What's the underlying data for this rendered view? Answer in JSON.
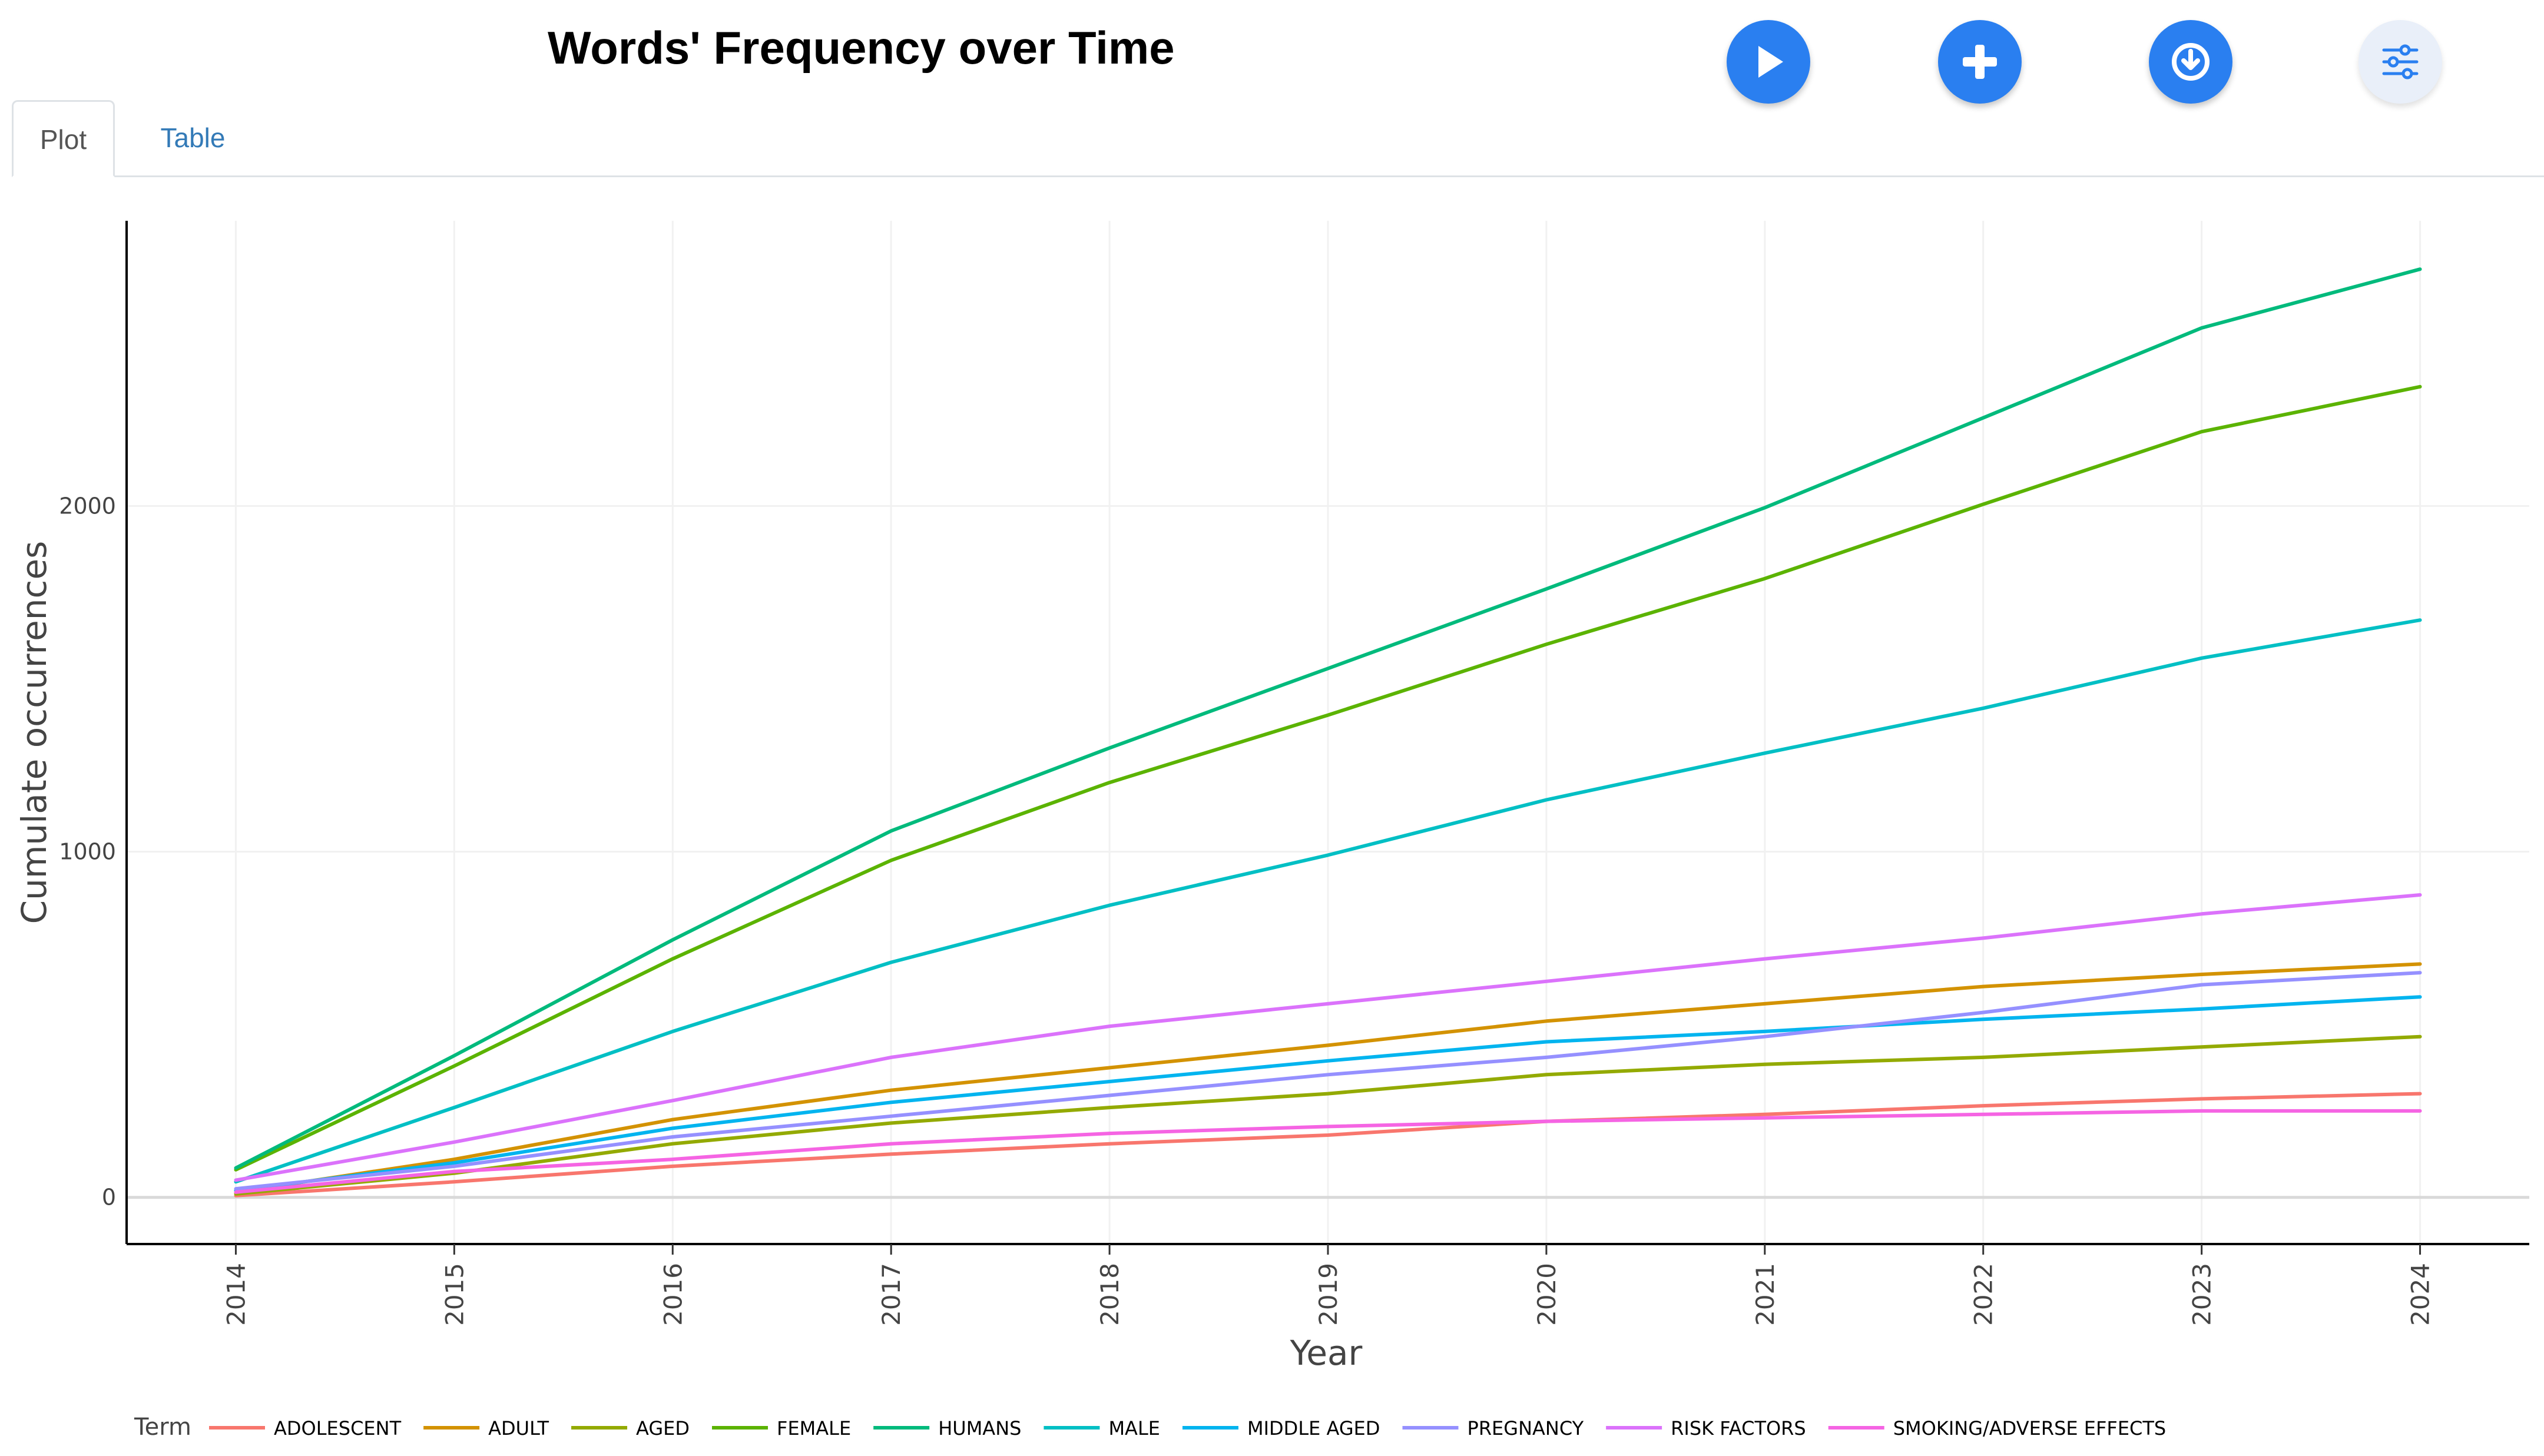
{
  "header": {
    "title": "Words' Frequency over Time"
  },
  "toolbar": {
    "play_icon": "play-icon",
    "add_icon": "plus-icon",
    "download_icon": "download-icon",
    "settings_icon": "sliders-icon",
    "accent_color": "#2a7ff0"
  },
  "tabs": [
    {
      "label": "Plot",
      "active": true
    },
    {
      "label": "Table",
      "active": false
    }
  ],
  "chart_data": {
    "type": "line",
    "title": "",
    "xlabel": "Year",
    "ylabel": "Cumulate occurrences",
    "legend_title": "Term",
    "legend_position": "bottom",
    "grid": true,
    "x": [
      2014,
      2015,
      2016,
      2017,
      2018,
      2019,
      2020,
      2021,
      2022,
      2023,
      2024
    ],
    "yticks": [
      0,
      1000,
      2000
    ],
    "xlim": [
      2013.5,
      2024.5
    ],
    "ylim": [
      -135,
      2825
    ],
    "series": [
      {
        "name": "ADOLESCENT",
        "color": "#F8766D",
        "values": [
          5,
          45,
          90,
          125,
          155,
          180,
          220,
          240,
          265,
          285,
          300
        ]
      },
      {
        "name": "ADULT",
        "color": "#D39200",
        "values": [
          15,
          110,
          225,
          310,
          375,
          440,
          510,
          560,
          610,
          645,
          675
        ]
      },
      {
        "name": "AGED",
        "color": "#93AA00",
        "values": [
          10,
          70,
          155,
          215,
          260,
          300,
          355,
          385,
          405,
          435,
          465
        ]
      },
      {
        "name": "FEMALE",
        "color": "#5BB300",
        "values": [
          80,
          380,
          690,
          975,
          1200,
          1395,
          1600,
          1790,
          2005,
          2215,
          2345
        ]
      },
      {
        "name": "HUMANS",
        "color": "#00BA7C",
        "values": [
          85,
          410,
          745,
          1060,
          1300,
          1530,
          1760,
          1995,
          2255,
          2515,
          2685
        ]
      },
      {
        "name": "MALE",
        "color": "#00BFC4",
        "values": [
          45,
          260,
          480,
          680,
          845,
          990,
          1150,
          1285,
          1415,
          1560,
          1670
        ]
      },
      {
        "name": "MIDDLE AGED",
        "color": "#00B4EF",
        "values": [
          20,
          100,
          200,
          275,
          335,
          395,
          450,
          480,
          515,
          545,
          580
        ]
      },
      {
        "name": "PREGNANCY",
        "color": "#9590FF",
        "values": [
          25,
          90,
          175,
          235,
          295,
          355,
          405,
          465,
          535,
          615,
          650
        ]
      },
      {
        "name": "RISK FACTORS",
        "color": "#DB72FB",
        "values": [
          50,
          160,
          280,
          405,
          495,
          560,
          625,
          690,
          750,
          820,
          875
        ]
      },
      {
        "name": "SMOKING/ADVERSE EFFECTS",
        "color": "#F564E3",
        "values": [
          15,
          75,
          110,
          155,
          185,
          205,
          220,
          230,
          240,
          250,
          250
        ]
      }
    ]
  }
}
